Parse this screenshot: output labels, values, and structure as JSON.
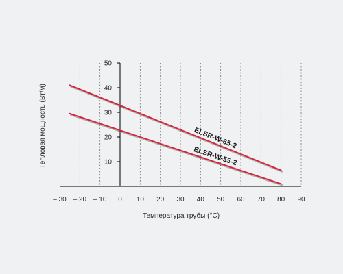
{
  "chart_data": {
    "type": "line",
    "xlabel": "Температура трубы (°C)",
    "ylabel": "Тепловая мощность (Вт/м)",
    "xlim": [
      -30,
      90
    ],
    "ylim": [
      0,
      50
    ],
    "x_ticks": [
      -30,
      -20,
      -10,
      0,
      10,
      20,
      30,
      40,
      50,
      60,
      70,
      80,
      90
    ],
    "x_tick_labels": [
      "– 30",
      "– 20",
      "– 10",
      "0",
      "10",
      "20",
      "30",
      "40",
      "50",
      "60",
      "70",
      "80",
      "90"
    ],
    "y_ticks": [
      10,
      20,
      30,
      40,
      50
    ],
    "y_tick_labels": [
      "10",
      "20",
      "30",
      "40",
      "50"
    ],
    "grid": "vertical",
    "colors": {
      "line": "#d6263e",
      "axis": "#000000",
      "grid": "#6f6f6f",
      "background": "#f0f1f2"
    },
    "series": [
      {
        "name": "ELSR-W-65-2",
        "x": [
          -25,
          80
        ],
        "y": [
          41,
          6.5
        ]
      },
      {
        "name": "ELSR-W-55-2",
        "x": [
          -25,
          80
        ],
        "y": [
          29.5,
          1
        ]
      }
    ]
  }
}
